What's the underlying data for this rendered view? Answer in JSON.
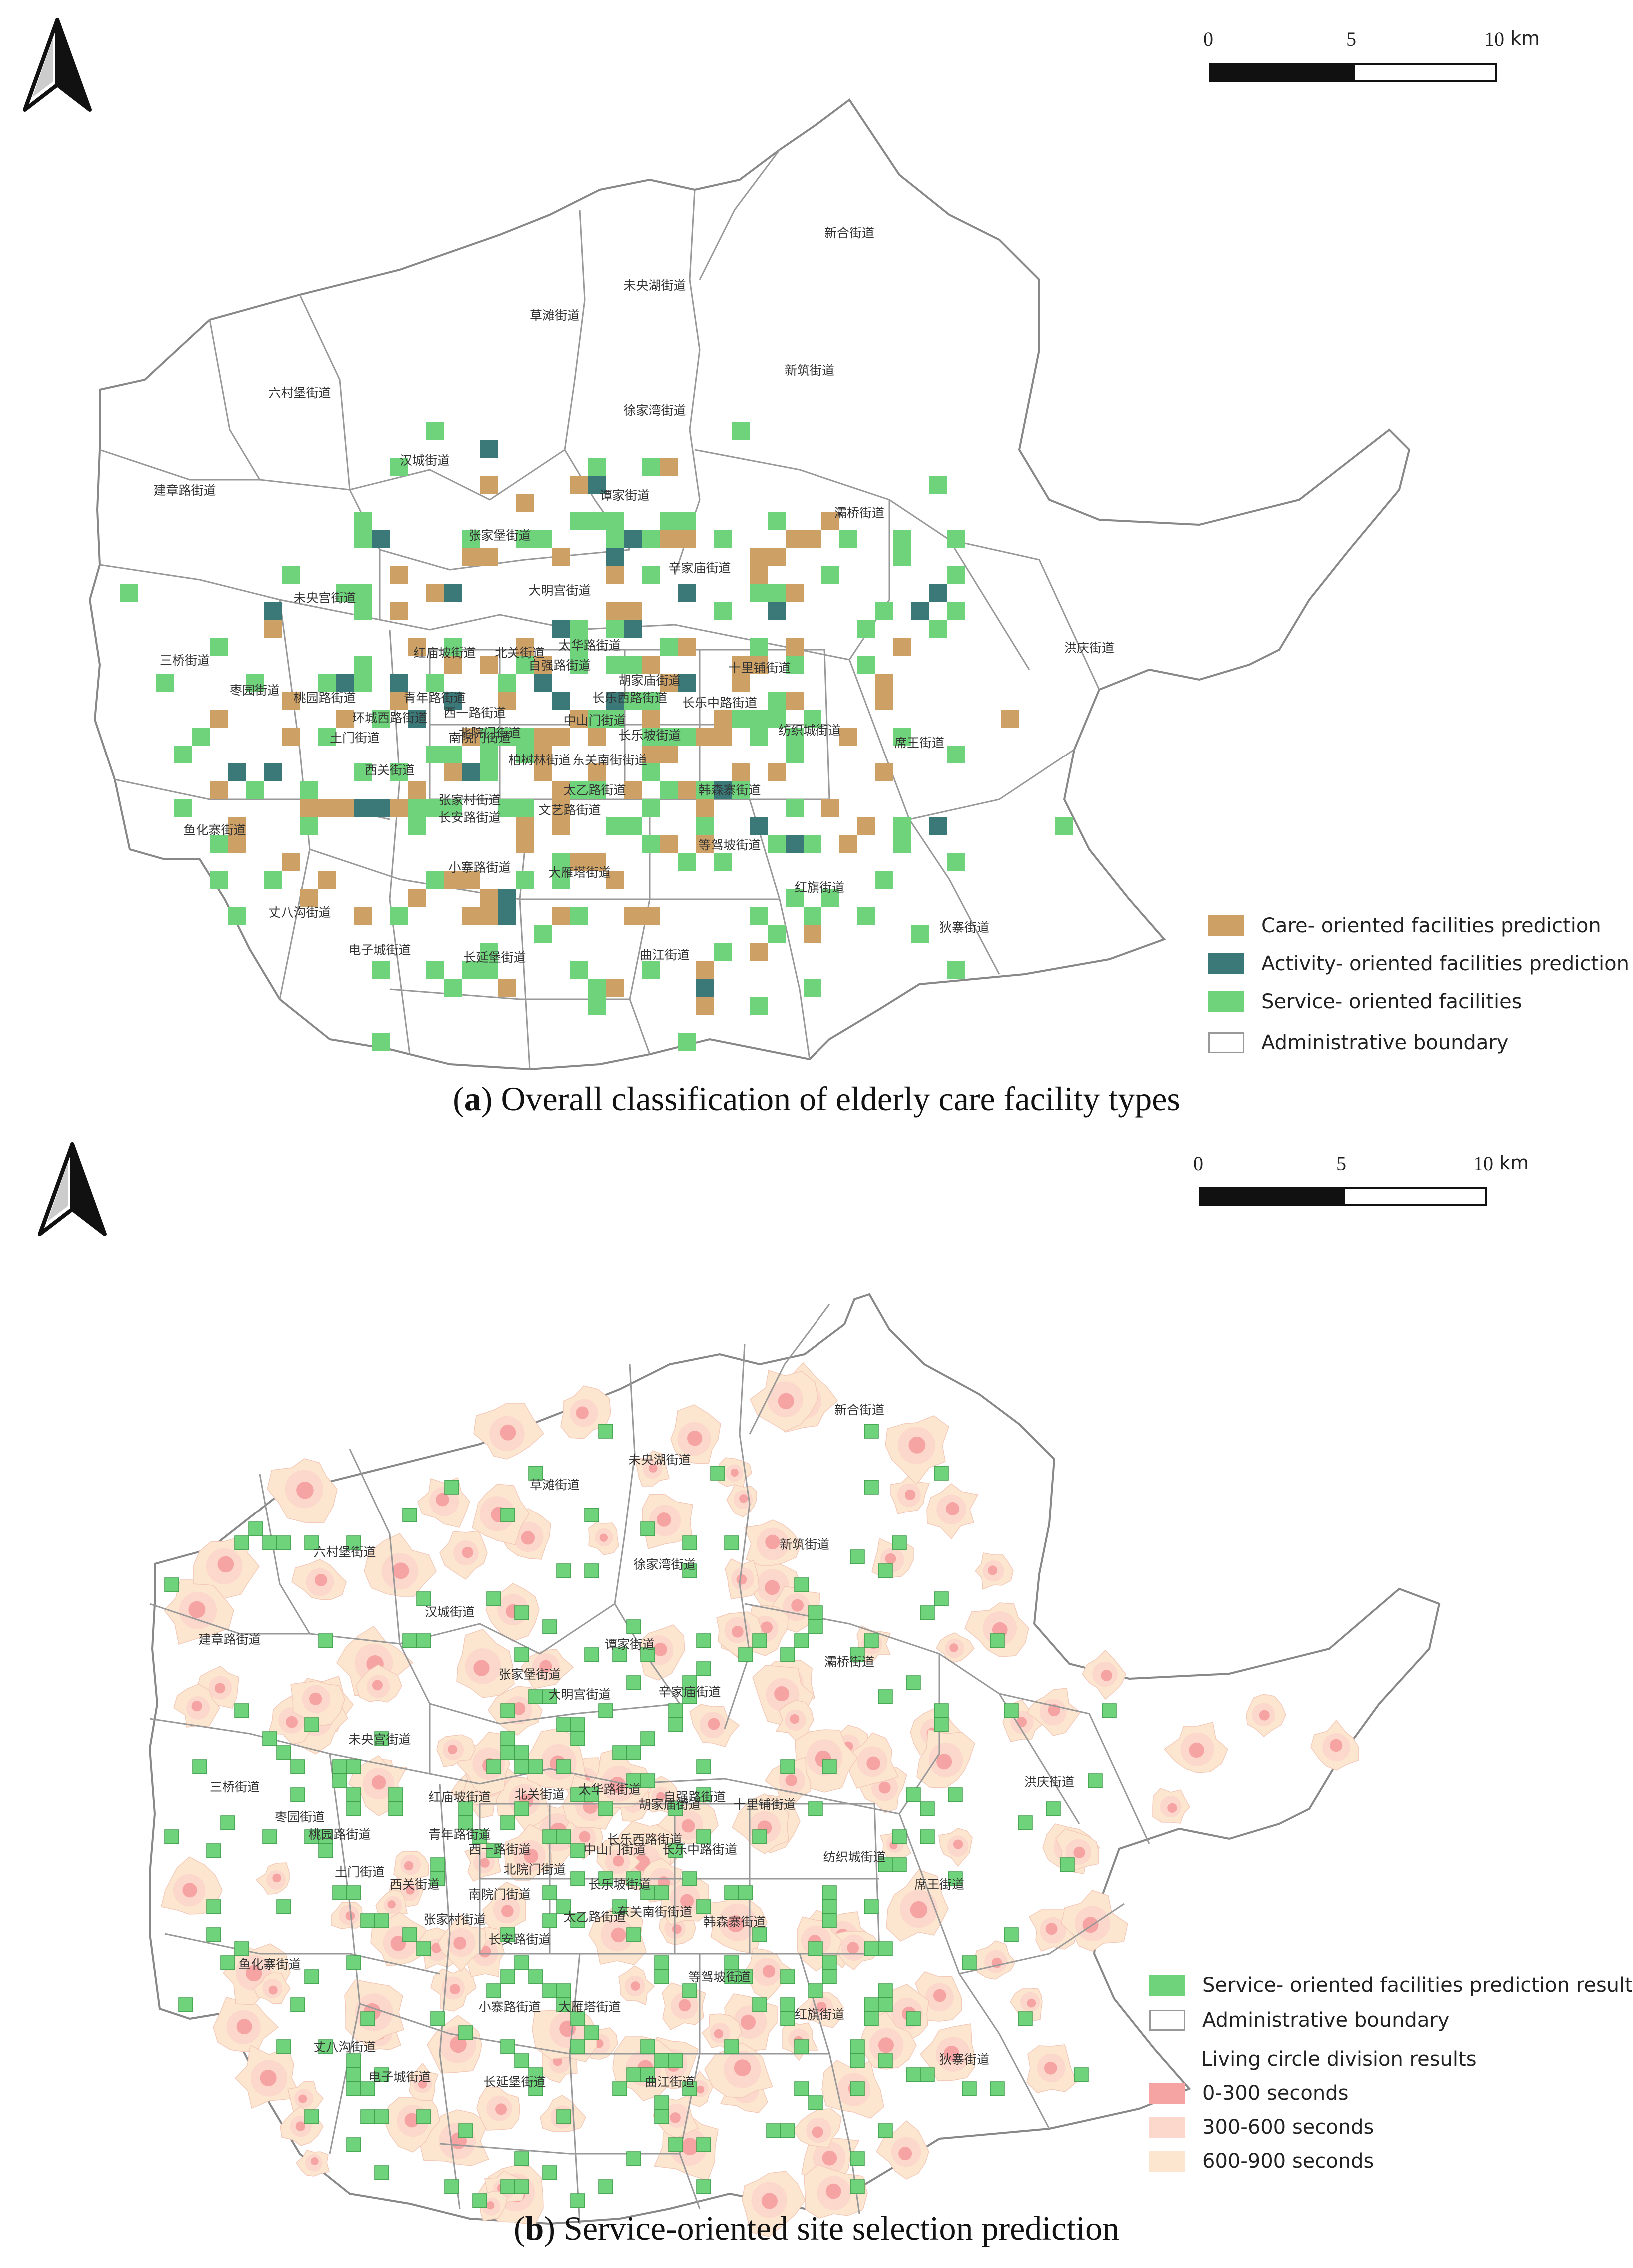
{
  "panel_a": {
    "caption_letter": "a",
    "caption_text": "Overall classification of elderly care facility types",
    "scale": {
      "ticks": [
        "0",
        "5",
        "10"
      ],
      "unit": "km"
    },
    "legend": [
      {
        "label": "Care- oriented facilities prediction",
        "color": "#cda065",
        "icon": "square-fill"
      },
      {
        "label": "Activity- oriented facilities prediction",
        "color": "#3a7978",
        "icon": "square-fill"
      },
      {
        "label": "Service- oriented facilities",
        "color": "#6fd37c",
        "icon": "square-fill"
      },
      {
        "label": "Administrative boundary",
        "color": "#ffffff",
        "icon": "square-outline"
      }
    ],
    "streets": [
      "新合街道",
      "未央湖街道",
      "草滩街道",
      "新筑街道",
      "六村堡街道",
      "徐家湾街道",
      "汉城街道",
      "建章路街道",
      "谭家街道",
      "灞桥街道",
      "张家堡街道",
      "未央宫街道",
      "大明宫街道",
      "辛家庙街道",
      "洪庆街道",
      "三桥街道",
      "红庙坡街道",
      "北关街道",
      "太华路街道",
      "自强路街道",
      "十里铺街道",
      "枣园街道",
      "桃园路街道",
      "青年路街道",
      "胡家庙街道",
      "西一路街道",
      "长乐西路街道",
      "环城西路街道",
      "北院门街道",
      "中山门街道",
      "长乐中路街道",
      "纺织城街道",
      "土门街道",
      "西关街道",
      "南院门街道",
      "长乐坡街道",
      "席王街道",
      "柏树林街道",
      "东关南街街道",
      "张家村街道",
      "太乙路街道",
      "韩森寨街道",
      "文艺路街道",
      "长安路街道",
      "鱼化寨街道",
      "等驾坡街道",
      "小寨路街道",
      "大雁塔街道",
      "红旗街道",
      "丈八沟街道",
      "狄寨街道",
      "电子城街道",
      "曲江街道",
      "长延堡街道"
    ]
  },
  "panel_b": {
    "caption_letter": "b",
    "caption_text": "Service-oriented site selection prediction",
    "scale": {
      "ticks": [
        "0",
        "5",
        "10"
      ],
      "unit": "km"
    },
    "legend_items": [
      {
        "label": "Service- oriented facilities prediction results",
        "color": "#6fd37c",
        "icon": "square-fill"
      },
      {
        "label": "Administrative boundary",
        "color": "#ffffff",
        "icon": "square-outline"
      }
    ],
    "legend_heading": "Living circle division results",
    "legend_bands": [
      {
        "label": "0-300 seconds",
        "color": "#f6a3a3"
      },
      {
        "label": "300-600 seconds",
        "color": "#fcd7cb"
      },
      {
        "label": "600-900 seconds",
        "color": "#fde6cf"
      }
    ],
    "streets": [
      "新合街道",
      "未央湖街道",
      "草滩街道",
      "新筑街道",
      "六村堡街道",
      "徐家湾街道",
      "汉城街道",
      "建章路街道",
      "谭家街道",
      "灞桥街道",
      "张家堡街道",
      "未央宫街道",
      "大明宫街道",
      "辛家庙街道",
      "洪庆街道",
      "三桥街道",
      "红庙坡街道",
      "北关街道",
      "太华路街道",
      "自强路街道",
      "十里铺街道",
      "枣园街道",
      "桃园路街道",
      "青年路街道",
      "胡家庙街道",
      "西一路街道",
      "长乐西路街道",
      "北院门街道",
      "中山门街道",
      "长乐中路街道",
      "纺织城街道",
      "土门街道",
      "西关街道",
      "南院门街道",
      "长乐坡街道",
      "席王街道",
      "东关南街街道",
      "张家村街道",
      "太乙路街道",
      "韩森寨街道",
      "长安路街道",
      "鱼化寨街道",
      "等驾坡街道",
      "小寨路街道",
      "大雁塔街道",
      "红旗街道",
      "丈八沟街道",
      "狄寨街道",
      "电子城街道",
      "曲江街道",
      "长延堡街道"
    ]
  }
}
